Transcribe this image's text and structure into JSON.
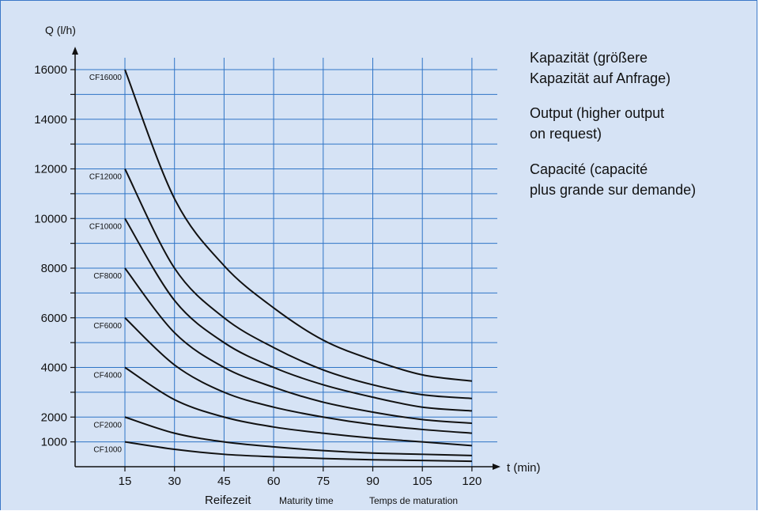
{
  "notes": {
    "de": [
      "Kapazität (größere",
      "Kapazität auf Anfrage)"
    ],
    "en": [
      "Output (higher output",
      "on request)"
    ],
    "fr": [
      "Capacité (capacité",
      "plus grande sur demande)"
    ]
  },
  "chart_data": {
    "type": "line",
    "ylabel": "Q (l/h)",
    "xlabel": "t (min)",
    "xlabels_below": [
      "Reifezeit",
      "Maturity time",
      "Temps de maturation"
    ],
    "xlim": [
      0,
      120
    ],
    "ylim": [
      0,
      17000
    ],
    "x_ticks": [
      15,
      30,
      45,
      60,
      75,
      90,
      105,
      120
    ],
    "y_tick_labels": [
      1000,
      2000,
      4000,
      6000,
      8000,
      10000,
      12000,
      14000,
      16000
    ],
    "grid": true,
    "x": [
      15,
      30,
      45,
      60,
      75,
      90,
      105,
      120
    ],
    "series": [
      {
        "name": "CF16000",
        "values": [
          16000,
          10800,
          8100,
          6400,
          5100,
          4300,
          3700,
          3450
        ]
      },
      {
        "name": "CF12000",
        "values": [
          12000,
          8000,
          6000,
          4800,
          3900,
          3300,
          2900,
          2750
        ]
      },
      {
        "name": "CF10000",
        "values": [
          10000,
          6700,
          5000,
          4000,
          3300,
          2800,
          2400,
          2250
        ]
      },
      {
        "name": "CF8000",
        "values": [
          8000,
          5400,
          4000,
          3200,
          2600,
          2200,
          1900,
          1750
        ]
      },
      {
        "name": "CF6000",
        "values": [
          6000,
          4100,
          3000,
          2400,
          2000,
          1700,
          1500,
          1350
        ]
      },
      {
        "name": "CF4000",
        "values": [
          4000,
          2700,
          2000,
          1600,
          1350,
          1150,
          1000,
          850
        ]
      },
      {
        "name": "CF2000",
        "values": [
          2000,
          1350,
          1000,
          800,
          650,
          550,
          500,
          450
        ]
      },
      {
        "name": "CF1000",
        "values": [
          1000,
          700,
          500,
          400,
          330,
          280,
          250,
          220
        ]
      }
    ]
  }
}
